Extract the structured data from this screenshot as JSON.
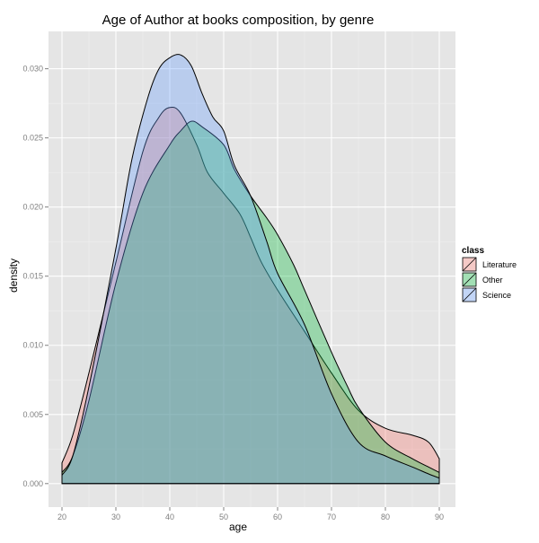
{
  "chart_data": {
    "type": "area",
    "title": "Age of Author at books composition, by genre",
    "xlabel": "age",
    "ylabel": "density",
    "xlim": [
      17.5,
      93
    ],
    "ylim": [
      -0.0017,
      0.0327
    ],
    "x_ticks": [
      20,
      30,
      40,
      50,
      60,
      70,
      80,
      90
    ],
    "y_ticks": [
      0.0,
      0.005,
      0.01,
      0.015,
      0.02,
      0.025,
      0.03
    ],
    "y_tick_labels": [
      "0.000",
      "0.005",
      "0.010",
      "0.015",
      "0.020",
      "0.025",
      "0.030"
    ],
    "grid": true,
    "legend": {
      "title": "class",
      "position": "right"
    },
    "series": [
      {
        "name": "Literature",
        "color": "#F8766D",
        "x": [
          20,
          22,
          25,
          30,
          35,
          38,
          40,
          42,
          45,
          47,
          50,
          53,
          55,
          57,
          60,
          65,
          70,
          75,
          80,
          85,
          88,
          90
        ],
        "values": [
          0.0015,
          0.0035,
          0.008,
          0.016,
          0.024,
          0.0265,
          0.0272,
          0.0268,
          0.0245,
          0.0225,
          0.021,
          0.0195,
          0.0178,
          0.016,
          0.014,
          0.011,
          0.008,
          0.0053,
          0.004,
          0.0035,
          0.003,
          0.0018
        ]
      },
      {
        "name": "Other",
        "color": "#00BA38",
        "x": [
          20,
          22,
          25,
          30,
          35,
          40,
          42,
          44,
          46,
          50,
          52,
          55,
          58,
          60,
          63,
          65,
          70,
          73,
          75,
          80,
          85,
          88,
          90
        ],
        "values": [
          0.0008,
          0.002,
          0.006,
          0.0145,
          0.021,
          0.0245,
          0.0255,
          0.0262,
          0.0258,
          0.0245,
          0.0227,
          0.0208,
          0.0192,
          0.018,
          0.0158,
          0.014,
          0.0095,
          0.007,
          0.0055,
          0.003,
          0.0018,
          0.0012,
          0.0008
        ]
      },
      {
        "name": "Science",
        "color": "#619CFF",
        "x": [
          20,
          22,
          25,
          30,
          33,
          36,
          38,
          40,
          42,
          44,
          46,
          48,
          50,
          52,
          55,
          58,
          60,
          65,
          70,
          75,
          80,
          85,
          88,
          90
        ],
        "values": [
          0.0006,
          0.002,
          0.007,
          0.017,
          0.0235,
          0.028,
          0.03,
          0.0308,
          0.031,
          0.0302,
          0.0282,
          0.0265,
          0.0255,
          0.023,
          0.0208,
          0.0175,
          0.0152,
          0.0115,
          0.0065,
          0.003,
          0.002,
          0.0012,
          0.0007,
          0.0004
        ]
      }
    ]
  }
}
